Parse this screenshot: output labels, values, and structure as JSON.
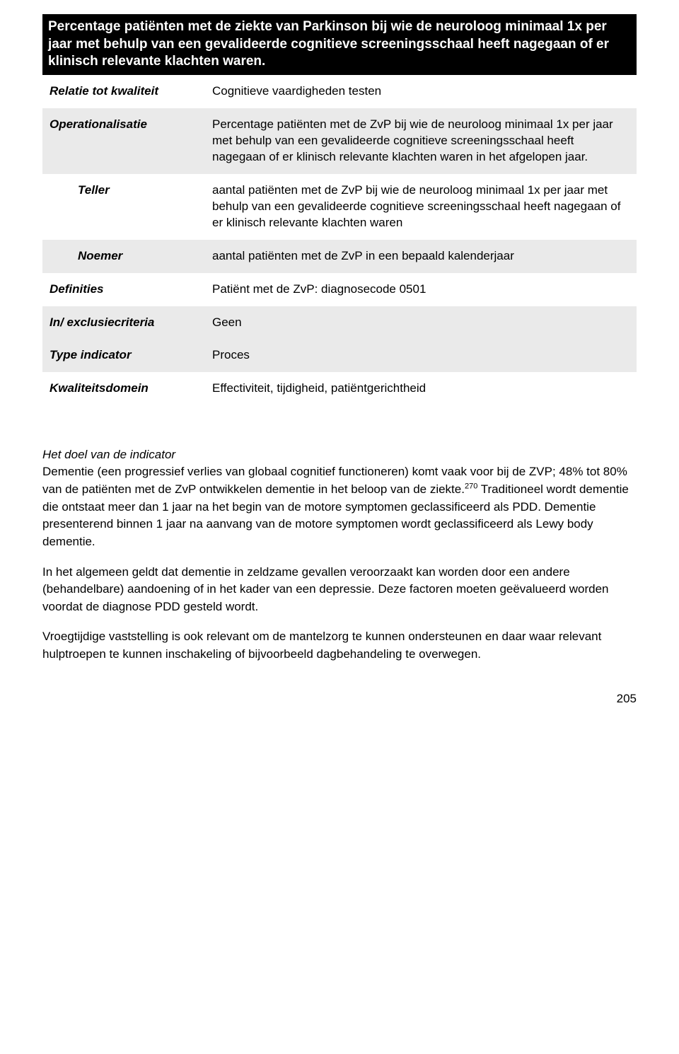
{
  "header": "Percentage patiënten met de ziekte van Parkinson bij wie de neuroloog minimaal 1x per jaar met behulp van een gevalideerde cognitieve screeningsschaal heeft nagegaan of er klinisch relevante klachten waren.",
  "rows": [
    {
      "label": "Relatie tot kwaliteit",
      "value": "Cognitieve vaardigheden testen",
      "bg": "white",
      "indent": false
    },
    {
      "label": "Operationalisatie",
      "value": "Percentage patiënten met de ZvP bij wie de neuroloog minimaal 1x per jaar met behulp van een gevalideerde cognitieve screeningsschaal heeft nagegaan of er klinisch relevante klachten waren in het afgelopen jaar.",
      "bg": "grey",
      "indent": false
    },
    {
      "label": "Teller",
      "value": "aantal patiënten met de ZvP bij wie de neuroloog minimaal 1x per jaar met behulp van een gevalideerde cognitieve screeningsschaal heeft nagegaan of er klinisch relevante klachten waren",
      "bg": "white",
      "indent": true
    },
    {
      "label": "Noemer",
      "value": "aantal patiënten met de ZvP in een bepaald kalenderjaar",
      "bg": "grey",
      "indent": true
    },
    {
      "label": "Definities",
      "value": "Patiënt met de ZvP: diagnosecode 0501",
      "bg": "white",
      "indent": false
    },
    {
      "label": "In/ exclusiecriteria",
      "value": "Geen",
      "bg": "grey",
      "indent": false
    },
    {
      "label": "Type indicator",
      "value": "Proces",
      "bg": "grey",
      "indent": false
    },
    {
      "label": "Kwaliteitsdomein",
      "value": "Effectiviteit, tijdigheid, patiëntgerichtheid",
      "bg": "white",
      "indent": false
    }
  ],
  "section_heading": "Het doel van de indicator",
  "para1_a": "Dementie (een progressief verlies van globaal cognitief functioneren) komt vaak voor bij de ZVP; 48% tot 80% van de patiënten met de ZvP ontwikkelen dementie in het beloop van de ziekte.",
  "footnote_ref": "270",
  "para1_b": " Traditioneel wordt dementie die ontstaat meer dan 1 jaar na het begin van de motore symptomen geclassificeerd als PDD. Dementie presenterend binnen 1 jaar na aanvang van de motore symptomen wordt geclassificeerd als Lewy body dementie.",
  "para2": "In het algemeen geldt dat dementie in zeldzame gevallen veroorzaakt kan worden door een andere (behandelbare) aandoening of in het kader van een depressie. Deze factoren moeten geëvalueerd worden voordat de diagnose PDD gesteld wordt.",
  "para3": "Vroegtijdige vaststelling is ook relevant om de mantelzorg te kunnen ondersteunen en daar waar relevant hulptroepen te kunnen inschakeling of bijvoorbeeld dagbehandeling te overwegen.",
  "page_number": "205"
}
